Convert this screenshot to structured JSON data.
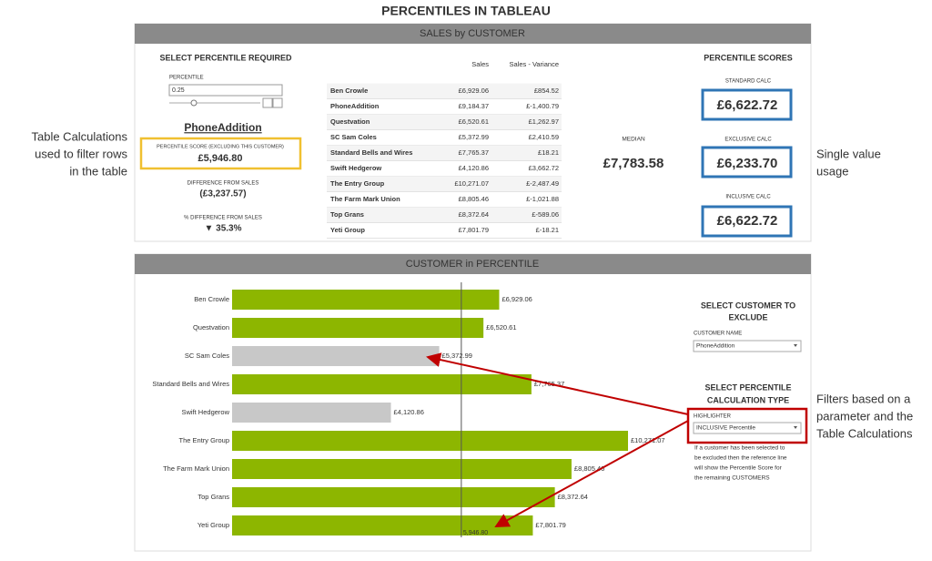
{
  "title": "PERCENTILES IN TABLEAU",
  "sales_panel": {
    "header": "SALES by CUSTOMER",
    "percentile_select": {
      "heading": "SELECT PERCENTILE REQUIRED",
      "label": "PERCENTILE",
      "value": "0.25"
    },
    "customer": "PhoneAddition",
    "score": {
      "label": "PERCENTILE SCORE (EXCLUDING THIS CUSTOMER)",
      "value": "£5,946.80"
    },
    "difference": {
      "label": "DIFFERENCE FROM SALES",
      "value": "(£3,237.57)"
    },
    "pct_difference": {
      "label": "% DIFFERENCE FROM SALES",
      "value": "▼ 35.3%"
    },
    "table": {
      "columns": [
        "Sales",
        "Sales - Variance"
      ],
      "rows": [
        [
          "Ben Crowle",
          "£6,929.06",
          "£854.52"
        ],
        [
          "PhoneAddition",
          "£9,184.37",
          "£-1,400.79"
        ],
        [
          "Questvation",
          "£6,520.61",
          "£1,262.97"
        ],
        [
          "SC Sam Coles",
          "£5,372.99",
          "£2,410.59"
        ],
        [
          "Standard Bells and Wires",
          "£7,765.37",
          "£18.21"
        ],
        [
          "Swift Hedgerow",
          "£4,120.86",
          "£3,662.72"
        ],
        [
          "The Entry Group",
          "£10,271.07",
          "£-2,487.49"
        ],
        [
          "The Farm Mark Union",
          "£8,805.46",
          "£-1,021.88"
        ],
        [
          "Top Grans",
          "£8,372.64",
          "£-589.06"
        ],
        [
          "Yeti Group",
          "£7,801.79",
          "£-18.21"
        ]
      ]
    },
    "median": {
      "label": "MEDIAN",
      "value": "£7,783.58"
    },
    "scores": {
      "heading": "PERCENTILE SCORES",
      "items": [
        {
          "label": "STANDARD CALC",
          "value": "£6,622.72"
        },
        {
          "label": "EXCLUSIVE CALC",
          "value": "£6,233.70"
        },
        {
          "label": "INCLUSIVE CALC",
          "value": "£6,622.72"
        }
      ]
    }
  },
  "chart_panel": {
    "header": "CUSTOMER in PERCENTILE",
    "chart_data": {
      "type": "bar",
      "categories": [
        "Ben Crowle",
        "Questvation",
        "SC Sam Coles",
        "Standard Bells and Wires",
        "Swift Hedgerow",
        "The Entry Group",
        "The Farm Mark Union",
        "Top Grans",
        "Yeti Group"
      ],
      "values": [
        6929.06,
        6520.61,
        5372.99,
        7765.37,
        4120.86,
        10271.07,
        8805.46,
        8372.64,
        7801.79
      ],
      "value_labels": [
        "£6,929.06",
        "£6,520.61",
        "£5,372.99",
        "£7,765.37",
        "£4,120.86",
        "£10,271.07",
        "£8,805.46",
        "£8,372.64",
        "£7,801.79"
      ],
      "colors": [
        "#8db600",
        "#8db600",
        "#c8c8c8",
        "#8db600",
        "#c8c8c8",
        "#8db600",
        "#8db600",
        "#8db600",
        "#8db600"
      ],
      "reference_line": {
        "value": 5946.8,
        "label": "5,946.80"
      }
    },
    "exclude": {
      "heading": [
        "SELECT CUSTOMER TO",
        "EXCLUDE"
      ],
      "label": "CUSTOMER NAME",
      "value": "PhoneAddition"
    },
    "calc_type": {
      "heading": [
        "SELECT PERCENTILE",
        "CALCULATION TYPE"
      ],
      "label": "HIGHLIGHTER",
      "value": "INCLUSIVE Percentile"
    },
    "note": [
      "If a customer has been selected to",
      "be excluded then the reference line",
      "will show the Percentile Score for",
      "the remaining CUSTOMERS"
    ]
  },
  "annotations": {
    "left": [
      "Table Calculations",
      "used to filter rows",
      "in the table"
    ],
    "middle": [
      "Single value",
      "usage"
    ],
    "right": [
      "Filters based on a",
      "parameter and the",
      "Table Calculations"
    ]
  }
}
